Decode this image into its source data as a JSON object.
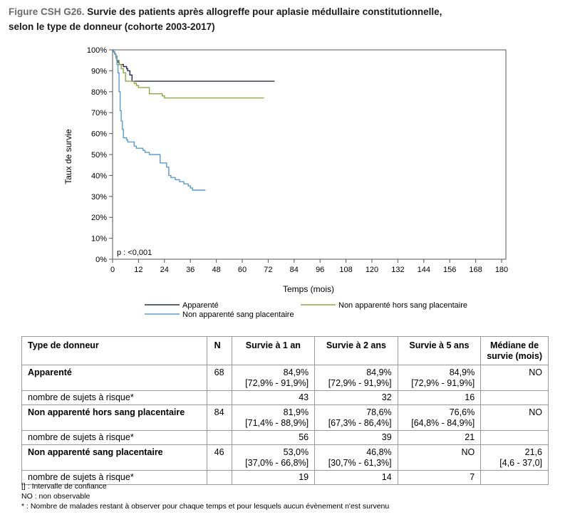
{
  "title": {
    "prefix": "Figure CSH G26.",
    "line1": " Survie des patients après allogreffe pour aplasie médullaire constitutionnelle,",
    "line2": "selon le type de donneur (cohorte 2003-2017)"
  },
  "chart_data": {
    "type": "line",
    "step": true,
    "ylabel": "Taux de survie",
    "xlabel": "Temps (mois)",
    "xlim": [
      0,
      180
    ],
    "ylim": [
      0,
      100
    ],
    "xticks": [
      "0",
      "12",
      "24",
      "36",
      "48",
      "60",
      "72",
      "84",
      "96",
      "108",
      "120",
      "132",
      "144",
      "156",
      "168",
      "180"
    ],
    "yticks": [
      "0%",
      "10%",
      "20%",
      "30%",
      "40%",
      "50%",
      "60%",
      "70%",
      "80%",
      "90%",
      "100%"
    ],
    "annotation": "p : <0,001",
    "legend_position": "bottom",
    "series": [
      {
        "name": "Apparenté",
        "color": "#2a2a5a",
        "points": [
          [
            0,
            100
          ],
          [
            0.5,
            99
          ],
          [
            1,
            98
          ],
          [
            1.5,
            97
          ],
          [
            2,
            95
          ],
          [
            2.5,
            94
          ],
          [
            3,
            93
          ],
          [
            5,
            92
          ],
          [
            6.5,
            91
          ],
          [
            7,
            90
          ],
          [
            8,
            88
          ],
          [
            9,
            85
          ],
          [
            75,
            85
          ]
        ]
      },
      {
        "name": "Non apparenté hors sang placentaire",
        "color": "#8aab3e",
        "points": [
          [
            0,
            100
          ],
          [
            0.5,
            99
          ],
          [
            1,
            98
          ],
          [
            1.5,
            97
          ],
          [
            2,
            95
          ],
          [
            3,
            93
          ],
          [
            4,
            91
          ],
          [
            5,
            89
          ],
          [
            6,
            85
          ],
          [
            9,
            85
          ],
          [
            10,
            84
          ],
          [
            11,
            83
          ],
          [
            12,
            82
          ],
          [
            16,
            82
          ],
          [
            17,
            79
          ],
          [
            22,
            79
          ],
          [
            23,
            78
          ],
          [
            24,
            77
          ],
          [
            70,
            77
          ]
        ]
      },
      {
        "name": "Non apparenté sang placentaire",
        "color": "#5b9bd5",
        "points": [
          [
            0,
            100
          ],
          [
            0.5,
            99
          ],
          [
            1,
            98
          ],
          [
            1.5,
            96
          ],
          [
            2,
            93
          ],
          [
            2.5,
            89
          ],
          [
            3,
            80
          ],
          [
            3.5,
            71
          ],
          [
            4,
            66
          ],
          [
            4.5,
            62
          ],
          [
            5,
            58
          ],
          [
            6,
            58
          ],
          [
            6.5,
            57
          ],
          [
            7,
            56
          ],
          [
            9,
            56
          ],
          [
            10,
            54
          ],
          [
            11,
            53
          ],
          [
            13,
            53
          ],
          [
            14,
            52
          ],
          [
            15,
            51
          ],
          [
            17,
            50
          ],
          [
            21,
            50
          ],
          [
            22,
            46
          ],
          [
            24,
            46
          ],
          [
            25,
            44
          ],
          [
            26,
            40
          ],
          [
            27,
            39
          ],
          [
            29,
            38
          ],
          [
            31,
            37
          ],
          [
            33,
            36
          ],
          [
            35,
            35
          ],
          [
            36,
            34
          ],
          [
            37,
            33
          ],
          [
            43,
            33
          ]
        ]
      }
    ]
  },
  "table": {
    "headers": {
      "type": "Type de donneur",
      "n": "N",
      "y1": "Survie à 1 an",
      "y2": "Survie à 2 ans",
      "y5": "Survie à 5 ans",
      "median": "Médiane de survie (mois)"
    },
    "groups": [
      {
        "label": "Apparenté",
        "n": "68",
        "y1": "84,9%",
        "y1_ci": "[72,9% - 91,9%]",
        "y2": "84,9%",
        "y2_ci": "[72,9% - 91,9%]",
        "y5": "84,9%",
        "y5_ci": "[72,9% - 91,9%]",
        "median": "NO",
        "median_ci": "",
        "risk_label": "nombre de sujets à risque*",
        "risk": [
          "43",
          "32",
          "16"
        ]
      },
      {
        "label": "Non apparenté hors sang placentaire",
        "n": "84",
        "y1": "81,9%",
        "y1_ci": "[71,4% - 88,9%]",
        "y2": "78,6%",
        "y2_ci": "[67,3% - 86,4%]",
        "y5": "76,6%",
        "y5_ci": "[64,8% - 84,9%]",
        "median": "NO",
        "median_ci": "",
        "risk_label": "nombre de sujets à risque*",
        "risk": [
          "56",
          "39",
          "21"
        ]
      },
      {
        "label": "Non apparenté sang placentaire",
        "n": "46",
        "y1": "53,0%",
        "y1_ci": "[37,0% - 66,8%]",
        "y2": "46,8%",
        "y2_ci": "[30,7% - 61,3%]",
        "y5": "NO",
        "y5_ci": "",
        "median": "21,6",
        "median_ci": "[4,6 - 37,0]",
        "risk_label": "nombre de sujets à risque*",
        "risk": [
          "19",
          "14",
          "7"
        ]
      }
    ]
  },
  "notes": [
    "[] : Intervalle de confiance",
    "NO : non observable",
    "* : Nombre de malades restant à observer pour chaque temps et pour lesquels aucun évènement n'est survenu"
  ]
}
